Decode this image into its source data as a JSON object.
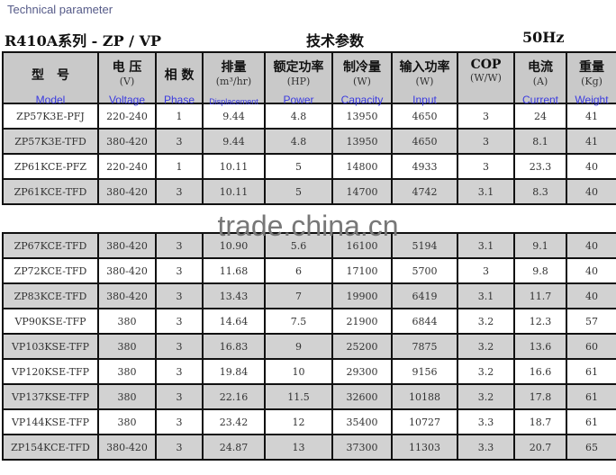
{
  "heading": "Technical parameter",
  "title_left": "R410A系列 - ZP / VP",
  "title_center": "技术参数",
  "title_right": "50Hz",
  "watermark": "trade.china.cn",
  "columns": [
    {
      "cn": "型　号",
      "unit": "",
      "en": "Model"
    },
    {
      "cn": "电 压",
      "unit": "(V)",
      "en": "Voltage"
    },
    {
      "cn": "相 数",
      "unit": "",
      "en": "Phase"
    },
    {
      "cn": "排量",
      "unit": "(m³/hr)",
      "en": "Displacement"
    },
    {
      "cn": "额定功率",
      "unit": "(HP)",
      "en": "Power"
    },
    {
      "cn": "制冷量",
      "unit": "(W)",
      "en": "Capacity"
    },
    {
      "cn": "输入功率",
      "unit": "(W)",
      "en": "Input"
    },
    {
      "cn": "COP",
      "unit": "(W/W)",
      "en": ""
    },
    {
      "cn": "电流",
      "unit": "(A)",
      "en": "Current"
    },
    {
      "cn": "重量",
      "unit": "(Kg)",
      "en": "Weight"
    }
  ],
  "rows": [
    [
      "ZP57K3E-PFJ",
      "220-240",
      "1",
      "9.44",
      "4.8",
      "13950",
      "4650",
      "3",
      "24",
      "41"
    ],
    [
      "ZP57K3E-TFD",
      "380-420",
      "3",
      "9.44",
      "4.8",
      "13950",
      "4650",
      "3",
      "8.1",
      "41"
    ],
    [
      "ZP61KCE-PFZ",
      "220-240",
      "1",
      "10.11",
      "5",
      "14800",
      "4933",
      "3",
      "23.3",
      "40"
    ],
    [
      "ZP61KCE-TFD",
      "380-420",
      "3",
      "10.11",
      "5",
      "14700",
      "4742",
      "3.1",
      "8.3",
      "40"
    ],
    [
      "ZP67KCE-TFD",
      "380-420",
      "3",
      "10.90",
      "5.6",
      "16100",
      "5194",
      "3.1",
      "9.1",
      "40"
    ],
    [
      "ZP72KCE-TFD",
      "380-420",
      "3",
      "11.68",
      "6",
      "17100",
      "5700",
      "3",
      "9.8",
      "40"
    ],
    [
      "ZP83KCE-TFD",
      "380-420",
      "3",
      "13.43",
      "7",
      "19900",
      "6419",
      "3.1",
      "11.7",
      "40"
    ],
    [
      "VP90KSE-TFP",
      "380",
      "3",
      "14.64",
      "7.5",
      "21900",
      "6844",
      "3.2",
      "12.3",
      "57"
    ],
    [
      "VP103KSE-TFP",
      "380",
      "3",
      "16.83",
      "9",
      "25200",
      "7875",
      "3.2",
      "13.6",
      "60"
    ],
    [
      "VP120KSE-TFP",
      "380",
      "3",
      "19.84",
      "10",
      "29300",
      "9156",
      "3.2",
      "16.6",
      "61"
    ],
    [
      "VP137KSE-TFP",
      "380",
      "3",
      "22.16",
      "11.5",
      "32600",
      "10188",
      "3.2",
      "17.8",
      "61"
    ],
    [
      "VP144KSE-TFP",
      "380",
      "3",
      "23.42",
      "12",
      "35400",
      "10727",
      "3.3",
      "18.7",
      "61"
    ],
    [
      "ZP154KCE-TFD",
      "380-420",
      "3",
      "24.87",
      "13",
      "37300",
      "11303",
      "3.3",
      "20.7",
      "65"
    ]
  ]
}
